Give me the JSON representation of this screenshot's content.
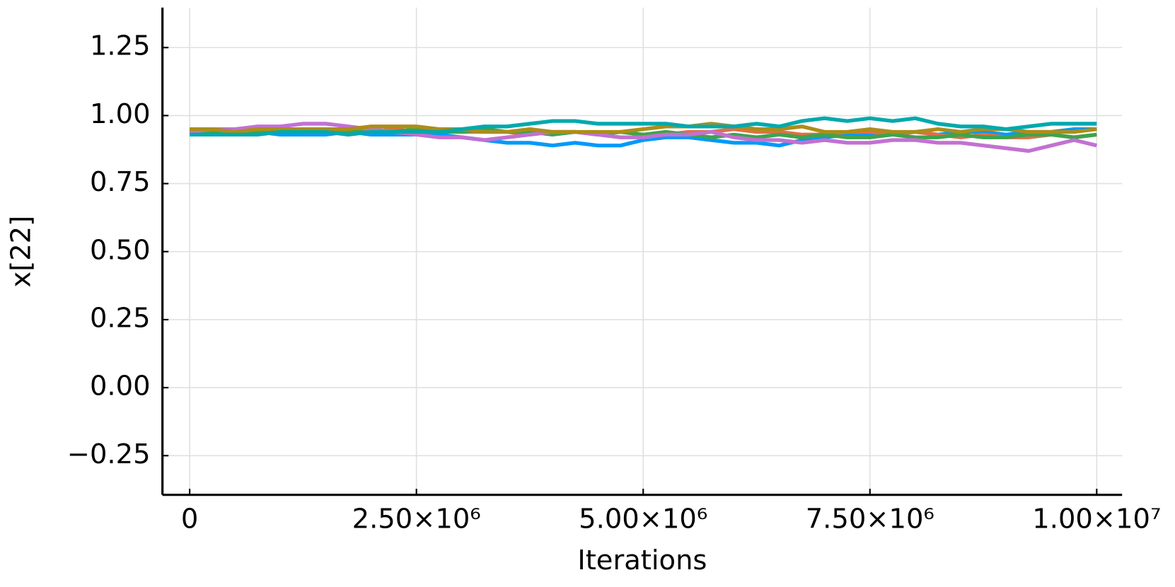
{
  "chart_data": {
    "type": "line",
    "xlabel": "Iterations",
    "ylabel": "x[22]",
    "x": [
      0,
      250000,
      500000,
      750000,
      1000000,
      1250000,
      1500000,
      1750000,
      2000000,
      2250000,
      2500000,
      2750000,
      3000000,
      3250000,
      3500000,
      3750000,
      4000000,
      4250000,
      4500000,
      4750000,
      5000000,
      5250000,
      5500000,
      5750000,
      6000000,
      6250000,
      6500000,
      6750000,
      7000000,
      7250000,
      7500000,
      7750000,
      8000000,
      8250000,
      8500000,
      8750000,
      9000000,
      9250000,
      9500000,
      9750000,
      10000000
    ],
    "series": [
      {
        "color": "#009af9",
        "values": [
          0.94,
          0.94,
          0.93,
          0.94,
          0.93,
          0.93,
          0.93,
          0.94,
          0.93,
          0.93,
          0.93,
          0.93,
          0.92,
          0.91,
          0.9,
          0.9,
          0.89,
          0.9,
          0.89,
          0.89,
          0.91,
          0.92,
          0.92,
          0.91,
          0.9,
          0.9,
          0.89,
          0.91,
          0.92,
          0.93,
          0.93,
          0.93,
          0.94,
          0.93,
          0.94,
          0.94,
          0.93,
          0.94,
          0.94,
          0.95,
          0.95
        ]
      },
      {
        "color": "#e26f46",
        "values": [
          0.94,
          0.95,
          0.94,
          0.94,
          0.95,
          0.94,
          0.94,
          0.93,
          0.94,
          0.95,
          0.94,
          0.95,
          0.94,
          0.94,
          0.94,
          0.93,
          0.94,
          0.94,
          0.93,
          0.94,
          0.93,
          0.93,
          0.94,
          0.94,
          0.95,
          0.94,
          0.94,
          0.93,
          0.93,
          0.94,
          0.94,
          0.93,
          0.94,
          0.93,
          0.92,
          0.93,
          0.92,
          0.92,
          0.93,
          0.92,
          0.93
        ]
      },
      {
        "color": "#3da44d",
        "values": [
          0.95,
          0.94,
          0.95,
          0.94,
          0.94,
          0.94,
          0.95,
          0.94,
          0.95,
          0.94,
          0.95,
          0.94,
          0.94,
          0.95,
          0.94,
          0.94,
          0.93,
          0.94,
          0.93,
          0.94,
          0.93,
          0.94,
          0.93,
          0.92,
          0.93,
          0.92,
          0.93,
          0.92,
          0.93,
          0.92,
          0.92,
          0.93,
          0.92,
          0.92,
          0.93,
          0.92,
          0.92,
          0.93,
          0.93,
          0.92,
          0.93
        ]
      },
      {
        "color": "#c271d2",
        "values": [
          0.94,
          0.95,
          0.95,
          0.96,
          0.96,
          0.97,
          0.97,
          0.96,
          0.95,
          0.94,
          0.93,
          0.92,
          0.92,
          0.91,
          0.92,
          0.93,
          0.94,
          0.94,
          0.93,
          0.92,
          0.92,
          0.93,
          0.93,
          0.94,
          0.92,
          0.91,
          0.91,
          0.9,
          0.91,
          0.9,
          0.9,
          0.91,
          0.91,
          0.9,
          0.9,
          0.89,
          0.88,
          0.87,
          0.89,
          0.91,
          0.89
        ]
      },
      {
        "color": "#ac8e18",
        "values": [
          0.95,
          0.95,
          0.94,
          0.95,
          0.95,
          0.95,
          0.95,
          0.95,
          0.96,
          0.96,
          0.96,
          0.95,
          0.95,
          0.94,
          0.94,
          0.95,
          0.94,
          0.94,
          0.94,
          0.94,
          0.95,
          0.96,
          0.96,
          0.97,
          0.96,
          0.95,
          0.95,
          0.96,
          0.94,
          0.94,
          0.95,
          0.94,
          0.94,
          0.95,
          0.94,
          0.95,
          0.95,
          0.94,
          0.94,
          0.94,
          0.95
        ]
      },
      {
        "color": "#00a9ad",
        "values": [
          0.93,
          0.93,
          0.93,
          0.93,
          0.94,
          0.94,
          0.94,
          0.93,
          0.94,
          0.94,
          0.94,
          0.94,
          0.95,
          0.96,
          0.96,
          0.97,
          0.98,
          0.98,
          0.97,
          0.97,
          0.97,
          0.97,
          0.96,
          0.96,
          0.96,
          0.97,
          0.96,
          0.98,
          0.99,
          0.98,
          0.99,
          0.98,
          0.99,
          0.97,
          0.96,
          0.96,
          0.95,
          0.96,
          0.97,
          0.97,
          0.97
        ]
      }
    ],
    "xlim": [
      -300000,
      10280000
    ],
    "xticks": [
      0,
      {
        "value": 2500000,
        "label": "2.50×10⁶"
      },
      {
        "value": 5000000,
        "label": "5.00×10⁶"
      },
      {
        "value": 7500000,
        "label": "7.50×10⁶"
      },
      {
        "value": 10000000,
        "label": "1.00×10⁷"
      }
    ],
    "ylim": [
      -0.394,
      1.397
    ],
    "yticks": [
      {
        "value": -0.25,
        "label": "−0.25"
      },
      {
        "value": 0,
        "label": "0.00"
      },
      0.25,
      {
        "value": 0.5,
        "label": "0.50"
      },
      0.75,
      {
        "value": 1,
        "label": "1.00"
      },
      1.25
    ],
    "grid": true
  }
}
